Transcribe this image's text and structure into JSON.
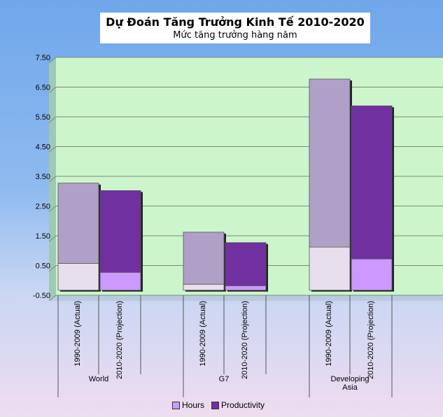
{
  "title": "Dự Đoán Tăng Trưởng Kinh Tế 2010-2020",
  "subtitle": "Mức tăng trưởng hàng năm",
  "chart_data": {
    "type": "bar",
    "stacked": true,
    "y_ticks": [
      "7.50",
      "6.50",
      "5.50",
      "4.50",
      "3.50",
      "2.50",
      "1.50",
      "0.50",
      "-0.50"
    ],
    "ylim": [
      -0.5,
      7.5
    ],
    "grid": true,
    "legend_position": "bottom",
    "groups": [
      {
        "label": "World",
        "categories": [
          "1990-2009 (Actual)",
          "2010-2020 (Projection)"
        ]
      },
      {
        "label": "G7",
        "categories": [
          "1990-2009 (Actual)",
          "2010-2020 (Projection)"
        ]
      },
      {
        "label": "Developing Asia",
        "categories": [
          "1990-2009 (Actual)",
          "2010-2020 (Projection)"
        ]
      }
    ],
    "series": [
      {
        "name": "Hours",
        "values": [
          0.9,
          0.6,
          0.2,
          0.15,
          1.45,
          1.05
        ]
      },
      {
        "name": "Productivity",
        "values": [
          2.7,
          2.75,
          1.75,
          1.45,
          5.65,
          5.15
        ]
      }
    ],
    "colors": {
      "plot_bg": "#ccf5cc",
      "hours_actual": "#e6e0ee",
      "hours_projection": "#cc99ff",
      "productivity_actual": "#b0a0c8",
      "productivity_projection": "#7030a0",
      "legend_hours": "#cc99ff",
      "legend_productivity": "#7030a0"
    }
  }
}
